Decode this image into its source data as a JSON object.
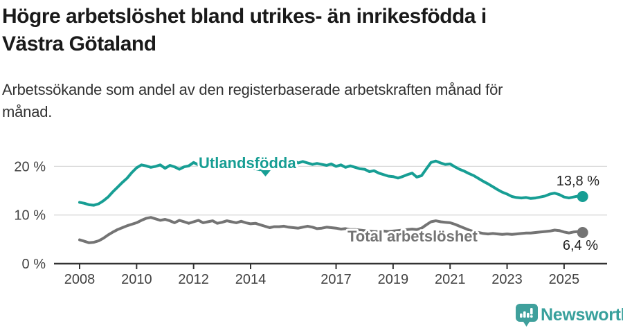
{
  "header": {
    "title_lines": [
      "Högre arbetslöshet bland utrikes- än inrikesfödda i",
      "Västra Götaland"
    ],
    "subtitle_lines": [
      "Arbetssökande som andel av den registerbaserade arbetskraften månad för",
      "månad."
    ]
  },
  "chart_data": {
    "type": "line",
    "title": "Högre arbetslöshet bland utrikes- än inrikesfödda i Västra Götaland",
    "subtitle": "Arbetssökande som andel av den registerbaserade arbetskraften månad för månad.",
    "xlabel": "",
    "ylabel": "",
    "xlim": [
      2007.1,
      2026.5
    ],
    "ylim": [
      0,
      22
    ],
    "grid": "horizontal-only",
    "legend_position": "inline-labels",
    "y_ticks": [
      {
        "value": 0,
        "label": "0 %"
      },
      {
        "value": 10,
        "label": "10 %"
      },
      {
        "value": 20,
        "label": "20 %"
      }
    ],
    "x_ticks": [
      {
        "value": 2008,
        "label": "2008"
      },
      {
        "value": 2010,
        "label": "2010"
      },
      {
        "value": 2012,
        "label": "2012"
      },
      {
        "value": 2014,
        "label": "2014"
      },
      {
        "value": 2017,
        "label": "2017"
      },
      {
        "value": 2019,
        "label": "2019"
      },
      {
        "value": 2021,
        "label": "2021"
      },
      {
        "value": 2023,
        "label": "2023"
      },
      {
        "value": 2025,
        "label": "2025"
      }
    ],
    "series": [
      {
        "name": "Utlandsfödda",
        "color": "#179e94",
        "end_label": "13,8 %",
        "end_value": 13.8,
        "points": [
          [
            2008.0,
            12.6
          ],
          [
            2008.17,
            12.4
          ],
          [
            2008.33,
            12.1
          ],
          [
            2008.5,
            12.0
          ],
          [
            2008.67,
            12.3
          ],
          [
            2008.83,
            12.9
          ],
          [
            2009.0,
            13.7
          ],
          [
            2009.17,
            14.8
          ],
          [
            2009.33,
            15.7
          ],
          [
            2009.5,
            16.7
          ],
          [
            2009.67,
            17.6
          ],
          [
            2009.83,
            18.7
          ],
          [
            2010.0,
            19.7
          ],
          [
            2010.17,
            20.3
          ],
          [
            2010.33,
            20.1
          ],
          [
            2010.5,
            19.8
          ],
          [
            2010.67,
            20.0
          ],
          [
            2010.83,
            20.3
          ],
          [
            2011.0,
            19.6
          ],
          [
            2011.17,
            20.2
          ],
          [
            2011.33,
            19.9
          ],
          [
            2011.5,
            19.4
          ],
          [
            2011.67,
            19.9
          ],
          [
            2011.83,
            20.1
          ],
          [
            2012.0,
            20.8
          ],
          [
            2012.17,
            20.3
          ],
          [
            2012.33,
            20.0
          ],
          [
            2012.5,
            20.4
          ],
          [
            2012.67,
            20.2
          ],
          [
            2012.83,
            20.1
          ],
          [
            2013.0,
            20.6
          ],
          [
            2013.17,
            20.8
          ],
          [
            2013.33,
            20.4
          ],
          [
            2013.5,
            20.1
          ],
          [
            2013.67,
            19.9
          ],
          [
            2013.83,
            19.7
          ],
          [
            2014.0,
            19.8
          ],
          [
            2014.17,
            19.5
          ],
          [
            2014.33,
            19.3
          ],
          [
            2014.5,
            19.7
          ],
          [
            2014.67,
            20.0
          ],
          [
            2014.83,
            20.2
          ],
          [
            2015.0,
            20.3
          ],
          [
            2015.17,
            20.6
          ],
          [
            2015.33,
            20.9
          ],
          [
            2015.5,
            21.2
          ],
          [
            2015.67,
            20.7
          ],
          [
            2015.83,
            21.0
          ],
          [
            2016.0,
            20.7
          ],
          [
            2016.17,
            20.4
          ],
          [
            2016.33,
            20.6
          ],
          [
            2016.5,
            20.4
          ],
          [
            2016.67,
            20.2
          ],
          [
            2016.83,
            20.5
          ],
          [
            2017.0,
            20.0
          ],
          [
            2017.17,
            20.3
          ],
          [
            2017.33,
            19.8
          ],
          [
            2017.5,
            20.1
          ],
          [
            2017.67,
            19.8
          ],
          [
            2017.83,
            19.5
          ],
          [
            2018.0,
            19.4
          ],
          [
            2018.17,
            18.9
          ],
          [
            2018.33,
            19.1
          ],
          [
            2018.5,
            18.6
          ],
          [
            2018.67,
            18.3
          ],
          [
            2018.83,
            18.0
          ],
          [
            2019.0,
            17.9
          ],
          [
            2019.17,
            17.6
          ],
          [
            2019.33,
            17.9
          ],
          [
            2019.5,
            18.3
          ],
          [
            2019.67,
            18.6
          ],
          [
            2019.83,
            17.8
          ],
          [
            2020.0,
            18.1
          ],
          [
            2020.17,
            19.5
          ],
          [
            2020.33,
            20.8
          ],
          [
            2020.5,
            21.1
          ],
          [
            2020.67,
            20.7
          ],
          [
            2020.83,
            20.4
          ],
          [
            2021.0,
            20.5
          ],
          [
            2021.17,
            19.9
          ],
          [
            2021.33,
            19.4
          ],
          [
            2021.5,
            19.0
          ],
          [
            2021.67,
            18.5
          ],
          [
            2021.83,
            18.1
          ],
          [
            2022.0,
            17.5
          ],
          [
            2022.17,
            16.9
          ],
          [
            2022.33,
            16.4
          ],
          [
            2022.5,
            15.8
          ],
          [
            2022.67,
            15.2
          ],
          [
            2022.83,
            14.7
          ],
          [
            2023.0,
            14.3
          ],
          [
            2023.17,
            13.8
          ],
          [
            2023.33,
            13.6
          ],
          [
            2023.5,
            13.5
          ],
          [
            2023.67,
            13.6
          ],
          [
            2023.83,
            13.4
          ],
          [
            2024.0,
            13.5
          ],
          [
            2024.17,
            13.7
          ],
          [
            2024.33,
            13.9
          ],
          [
            2024.5,
            14.3
          ],
          [
            2024.67,
            14.5
          ],
          [
            2024.83,
            14.2
          ],
          [
            2025.0,
            13.7
          ],
          [
            2025.17,
            13.5
          ],
          [
            2025.33,
            13.7
          ],
          [
            2025.5,
            13.9
          ],
          [
            2025.65,
            13.8
          ]
        ]
      },
      {
        "name": "Total arbetslöshet",
        "color": "#747474",
        "end_label": "6,4 %",
        "end_value": 6.4,
        "points": [
          [
            2008.0,
            4.9
          ],
          [
            2008.17,
            4.6
          ],
          [
            2008.33,
            4.3
          ],
          [
            2008.5,
            4.4
          ],
          [
            2008.67,
            4.7
          ],
          [
            2008.83,
            5.2
          ],
          [
            2009.0,
            5.9
          ],
          [
            2009.17,
            6.5
          ],
          [
            2009.33,
            7.0
          ],
          [
            2009.5,
            7.4
          ],
          [
            2009.67,
            7.8
          ],
          [
            2009.83,
            8.1
          ],
          [
            2010.0,
            8.4
          ],
          [
            2010.17,
            8.9
          ],
          [
            2010.33,
            9.3
          ],
          [
            2010.5,
            9.5
          ],
          [
            2010.67,
            9.2
          ],
          [
            2010.83,
            8.9
          ],
          [
            2011.0,
            9.1
          ],
          [
            2011.17,
            8.8
          ],
          [
            2011.33,
            8.4
          ],
          [
            2011.5,
            8.9
          ],
          [
            2011.67,
            8.6
          ],
          [
            2011.83,
            8.3
          ],
          [
            2012.0,
            8.6
          ],
          [
            2012.17,
            8.9
          ],
          [
            2012.33,
            8.4
          ],
          [
            2012.5,
            8.6
          ],
          [
            2012.67,
            8.8
          ],
          [
            2012.83,
            8.3
          ],
          [
            2013.0,
            8.5
          ],
          [
            2013.17,
            8.8
          ],
          [
            2013.33,
            8.6
          ],
          [
            2013.5,
            8.4
          ],
          [
            2013.67,
            8.7
          ],
          [
            2013.83,
            8.4
          ],
          [
            2014.0,
            8.2
          ],
          [
            2014.17,
            8.3
          ],
          [
            2014.33,
            8.0
          ],
          [
            2014.5,
            7.7
          ],
          [
            2014.67,
            7.4
          ],
          [
            2014.83,
            7.6
          ],
          [
            2015.0,
            7.6
          ],
          [
            2015.17,
            7.7
          ],
          [
            2015.33,
            7.5
          ],
          [
            2015.5,
            7.4
          ],
          [
            2015.67,
            7.3
          ],
          [
            2015.83,
            7.5
          ],
          [
            2016.0,
            7.7
          ],
          [
            2016.17,
            7.5
          ],
          [
            2016.33,
            7.2
          ],
          [
            2016.5,
            7.3
          ],
          [
            2016.67,
            7.5
          ],
          [
            2016.83,
            7.4
          ],
          [
            2017.0,
            7.3
          ],
          [
            2017.17,
            7.1
          ],
          [
            2017.33,
            7.2
          ],
          [
            2017.5,
            7.0
          ],
          [
            2017.67,
            7.0
          ],
          [
            2017.83,
            6.9
          ],
          [
            2018.0,
            6.8
          ],
          [
            2018.17,
            6.7
          ],
          [
            2018.33,
            6.6
          ],
          [
            2018.5,
            6.6
          ],
          [
            2018.67,
            6.7
          ],
          [
            2018.83,
            6.6
          ],
          [
            2019.0,
            6.7
          ],
          [
            2019.17,
            6.8
          ],
          [
            2019.33,
            6.9
          ],
          [
            2019.5,
            7.0
          ],
          [
            2019.67,
            7.1
          ],
          [
            2019.83,
            7.0
          ],
          [
            2020.0,
            7.3
          ],
          [
            2020.17,
            8.0
          ],
          [
            2020.33,
            8.6
          ],
          [
            2020.5,
            8.8
          ],
          [
            2020.67,
            8.6
          ],
          [
            2020.83,
            8.5
          ],
          [
            2021.0,
            8.4
          ],
          [
            2021.17,
            8.1
          ],
          [
            2021.33,
            7.7
          ],
          [
            2021.5,
            7.3
          ],
          [
            2021.67,
            6.9
          ],
          [
            2021.83,
            6.6
          ],
          [
            2022.0,
            6.4
          ],
          [
            2022.17,
            6.2
          ],
          [
            2022.33,
            6.1
          ],
          [
            2022.5,
            6.2
          ],
          [
            2022.67,
            6.1
          ],
          [
            2022.83,
            6.0
          ],
          [
            2023.0,
            6.1
          ],
          [
            2023.17,
            6.0
          ],
          [
            2023.33,
            6.1
          ],
          [
            2023.5,
            6.2
          ],
          [
            2023.67,
            6.3
          ],
          [
            2023.83,
            6.3
          ],
          [
            2024.0,
            6.4
          ],
          [
            2024.17,
            6.5
          ],
          [
            2024.33,
            6.6
          ],
          [
            2024.5,
            6.7
          ],
          [
            2024.67,
            6.9
          ],
          [
            2024.83,
            6.8
          ],
          [
            2025.0,
            6.5
          ],
          [
            2025.17,
            6.3
          ],
          [
            2025.33,
            6.5
          ],
          [
            2025.5,
            6.6
          ],
          [
            2025.65,
            6.4
          ]
        ]
      }
    ],
    "colors": {
      "accent_teal": "#179e94",
      "line_gray": "#747474",
      "gridline": "#d9d9d9",
      "axis": "#333333",
      "axis_text": "#424242"
    }
  },
  "footer": {
    "brand": "Newsworthy",
    "brand_color": "#38a09c"
  }
}
